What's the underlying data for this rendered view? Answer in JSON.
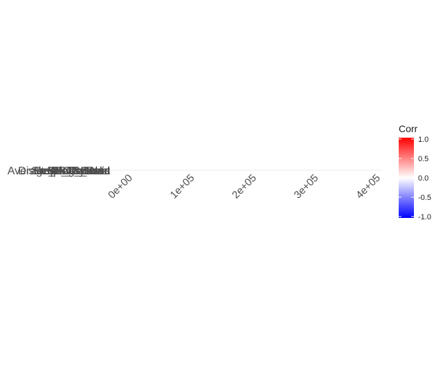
{
  "chart_data": {
    "type": "heatmap",
    "title": "",
    "xlabel": "",
    "ylabel": "",
    "y_labels": [
      "Average_Data_Used",
      "Distance_Traveled",
      "RBC_Count",
      "Sleeping_Hours",
      "Steps_Counted",
      "SPO2_Level",
      "Heart_Rate",
      "BP_Systolic",
      "BP_Diastolic"
    ],
    "x_ticks": [
      "0e+00",
      "1e+05",
      "2e+05",
      "3e+05",
      "4e+05"
    ],
    "xlim": [
      0,
      400000
    ],
    "grid": true,
    "legend": {
      "title": "Corr",
      "placement": "right",
      "ticks": [
        "1.0",
        "0.5",
        "0.0",
        "-0.5",
        "-1.0"
      ],
      "range": [
        -1,
        1
      ],
      "colors": {
        "low": "#0000ff",
        "mid": "#ffffff",
        "high": "#ff0000"
      }
    }
  }
}
